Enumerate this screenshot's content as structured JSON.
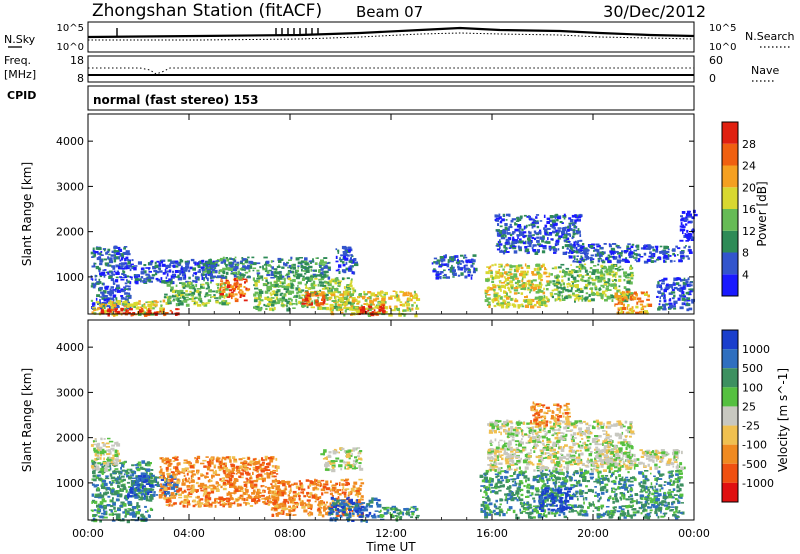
{
  "header": {
    "station": "Zhongshan Station (fitACF)",
    "beam": "Beam 07",
    "date": "30/Dec/2012"
  },
  "strips": {
    "nsky": {
      "label": "N.Sky",
      "right_label": "N.Search",
      "left_ticks": [
        "10^5",
        "10^0"
      ],
      "right_ticks": [
        "10^5",
        "10^0"
      ]
    },
    "freq": {
      "label_line1": "Freq.",
      "label_line2": "[MHz]",
      "right_label": "Nave",
      "left_ticks": [
        "18",
        "8"
      ],
      "right_ticks": [
        "60",
        "0"
      ]
    },
    "cpid": {
      "label": "CPID",
      "text": "normal (fast stereo) 153"
    }
  },
  "chart_data": [
    {
      "type": "heatmap",
      "panel": "power",
      "ylabel": "Slant Range [km]",
      "ylim": [
        180,
        4600
      ],
      "yticks": [
        1000,
        2000,
        3000,
        4000
      ],
      "xlabel": "",
      "x_ticks": [
        "00:00",
        "04:00",
        "08:00",
        "12:00",
        "16:00",
        "20:00",
        "00:00"
      ],
      "xlim_hours": [
        0,
        24
      ],
      "colorbar": {
        "label": "Power [dB]",
        "ticks": [
          "4",
          "8",
          "12",
          "16",
          "20",
          "24",
          "28"
        ],
        "colors": [
          "#1a1aff",
          "#3355cc",
          "#2e8b57",
          "#66bb55",
          "#d8d830",
          "#f5a020",
          "#f06010",
          "#e02010"
        ]
      },
      "regions": [
        {
          "t0": 0.1,
          "t1": 1.6,
          "r0": 300,
          "r1": 1700,
          "c": 1
        },
        {
          "t0": 0.1,
          "t1": 3.0,
          "r0": 180,
          "r1": 500,
          "c": 4
        },
        {
          "t0": 0.5,
          "t1": 3.5,
          "r0": 180,
          "r1": 320,
          "c": 7
        },
        {
          "t0": 1.5,
          "t1": 5.0,
          "r0": 900,
          "r1": 1400,
          "c": 1
        },
        {
          "t0": 3.0,
          "t1": 5.5,
          "r0": 400,
          "r1": 900,
          "c": 3
        },
        {
          "t0": 5.2,
          "t1": 6.3,
          "r0": 500,
          "r1": 1000,
          "c": 6
        },
        {
          "t0": 4.5,
          "t1": 9.5,
          "r0": 1000,
          "r1": 1450,
          "c": 2
        },
        {
          "t0": 6.5,
          "t1": 10.5,
          "r0": 300,
          "r1": 1000,
          "c": 3
        },
        {
          "t0": 8.4,
          "t1": 9.3,
          "r0": 400,
          "r1": 700,
          "c": 6
        },
        {
          "t0": 9.5,
          "t1": 13.0,
          "r0": 180,
          "r1": 700,
          "c": 4
        },
        {
          "t0": 10.7,
          "t1": 11.7,
          "r0": 180,
          "r1": 420,
          "c": 7
        },
        {
          "t0": 9.8,
          "t1": 10.6,
          "r0": 1100,
          "r1": 1700,
          "c": 1
        },
        {
          "t0": 13.6,
          "t1": 15.3,
          "r0": 1000,
          "r1": 1500,
          "c": 1
        },
        {
          "t0": 15.7,
          "t1": 18.2,
          "r0": 350,
          "r1": 1300,
          "c": 4
        },
        {
          "t0": 16.1,
          "t1": 19.5,
          "r0": 1550,
          "r1": 2400,
          "c": 1
        },
        {
          "t0": 18.2,
          "t1": 21.5,
          "r0": 500,
          "r1": 1300,
          "c": 3
        },
        {
          "t0": 19.0,
          "t1": 23.8,
          "r0": 1350,
          "r1": 1750,
          "c": 1
        },
        {
          "t0": 20.8,
          "t1": 22.2,
          "r0": 200,
          "r1": 700,
          "c": 5
        },
        {
          "t0": 22.5,
          "t1": 23.9,
          "r0": 300,
          "r1": 1000,
          "c": 1
        },
        {
          "t0": 23.4,
          "t1": 24.0,
          "r0": 1800,
          "r1": 2500,
          "c": 0
        }
      ]
    },
    {
      "type": "heatmap",
      "panel": "velocity",
      "ylabel": "Slant Range [km]",
      "ylim": [
        180,
        4600
      ],
      "yticks": [
        1000,
        2000,
        3000,
        4000
      ],
      "xlabel": "Time UT",
      "x_ticks": [
        "00:00",
        "04:00",
        "08:00",
        "12:00",
        "16:00",
        "20:00",
        "00:00"
      ],
      "xlim_hours": [
        0,
        24
      ],
      "colorbar": {
        "label": "Velocity [m s^-1]",
        "ticks": [
          "1000",
          "500",
          "100",
          "25",
          "-25",
          "-100",
          "-500",
          "-1000"
        ],
        "colors": [
          "#1a3fcc",
          "#2f6fbf",
          "#3d9060",
          "#55c040",
          "#c8c8c0",
          "#f0c050",
          "#f08a20",
          "#f05010",
          "#e01010"
        ]
      },
      "regions": [
        {
          "t0": 0.1,
          "t1": 2.5,
          "r0": 180,
          "r1": 1500,
          "c": 2
        },
        {
          "t0": 0.1,
          "t1": 1.2,
          "r0": 1300,
          "r1": 2000,
          "c": 4
        },
        {
          "t0": 1.5,
          "t1": 3.5,
          "r0": 700,
          "r1": 1200,
          "c": 1
        },
        {
          "t0": 2.8,
          "t1": 7.5,
          "r0": 500,
          "r1": 1600,
          "c": 6
        },
        {
          "t0": 7.2,
          "t1": 10.8,
          "r0": 300,
          "r1": 1100,
          "c": 6
        },
        {
          "t0": 9.5,
          "t1": 11.5,
          "r0": 180,
          "r1": 700,
          "c": 1
        },
        {
          "t0": 11.5,
          "t1": 13.0,
          "r0": 200,
          "r1": 500,
          "c": 2
        },
        {
          "t0": 9.2,
          "t1": 10.8,
          "r0": 1300,
          "r1": 1800,
          "c": 4
        },
        {
          "t0": 15.5,
          "t1": 23.5,
          "r0": 250,
          "r1": 1300,
          "c": 2
        },
        {
          "t0": 17.8,
          "t1": 19.1,
          "r0": 400,
          "r1": 900,
          "c": 0
        },
        {
          "t0": 15.8,
          "t1": 21.5,
          "r0": 1300,
          "r1": 2400,
          "c": 4
        },
        {
          "t0": 20.0,
          "t1": 23.5,
          "r0": 1350,
          "r1": 1750,
          "c": 4
        },
        {
          "t0": 17.5,
          "t1": 19.0,
          "r0": 2300,
          "r1": 2800,
          "c": 6
        }
      ]
    }
  ]
}
